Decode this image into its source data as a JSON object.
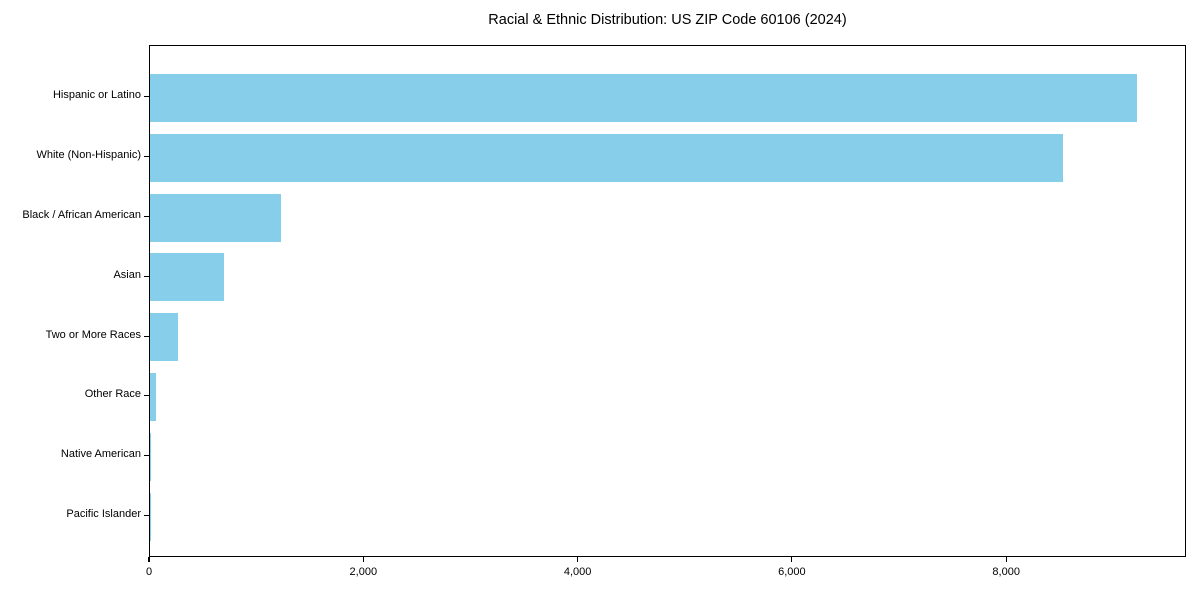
{
  "chart_data": {
    "type": "bar",
    "orientation": "horizontal",
    "title": "Racial & Ethnic Distribution: US ZIP Code 60106 (2024)",
    "categories": [
      "Hispanic or Latino",
      "White (Non-Hispanic)",
      "Black / African American",
      "Asian",
      "Two or More Races",
      "Other Race",
      "Native American",
      "Pacific Islander"
    ],
    "values": [
      9210,
      8520,
      1220,
      690,
      260,
      60,
      12,
      3
    ],
    "xlabel": "",
    "ylabel": "",
    "xlim": [
      0,
      9678
    ],
    "x_ticks": [
      0,
      2000,
      4000,
      6000,
      8000
    ],
    "x_tick_labels": [
      "0",
      "2,000",
      "4,000",
      "6,000",
      "8,000"
    ],
    "bar_color": "#87CEEB",
    "text_color": "#000000",
    "spine_color": "#000000",
    "grid": false,
    "legend_position": "none"
  }
}
